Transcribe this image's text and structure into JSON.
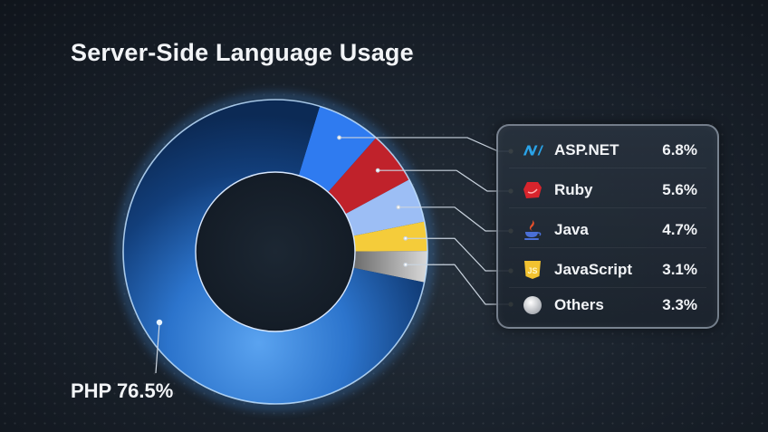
{
  "title": "Server-Side Language Usage",
  "php_label": "PHP 76.5%",
  "legend": [
    {
      "name": "ASP.NET",
      "value": "6.8%",
      "icon": "aspnet-icon",
      "color": "#2f7bf0"
    },
    {
      "name": "Ruby",
      "value": "5.6%",
      "icon": "ruby-icon",
      "color": "#c0222b"
    },
    {
      "name": "Java",
      "value": "4.7%",
      "icon": "java-icon",
      "color": "#9cbef5"
    },
    {
      "name": "JavaScript",
      "value": "3.1%",
      "icon": "javascript-icon",
      "color": "#f5cc3a"
    },
    {
      "name": "Others",
      "value": "3.3%",
      "icon": "others-icon",
      "color": "#9a9a9a"
    }
  ],
  "chart_data": {
    "type": "pie",
    "title": "Server-Side Language Usage",
    "categories": [
      "PHP",
      "ASP.NET",
      "Ruby",
      "Java",
      "JavaScript",
      "Others"
    ],
    "values": [
      76.5,
      6.8,
      5.6,
      4.7,
      3.1,
      3.3
    ],
    "colors": [
      "#1f5fb8",
      "#2f7bf0",
      "#c0222b",
      "#9cbef5",
      "#f5cc3a",
      "#9a9a9a"
    ],
    "donut": true,
    "legend_position": "right",
    "annotations": [
      "PHP 76.5%"
    ]
  }
}
